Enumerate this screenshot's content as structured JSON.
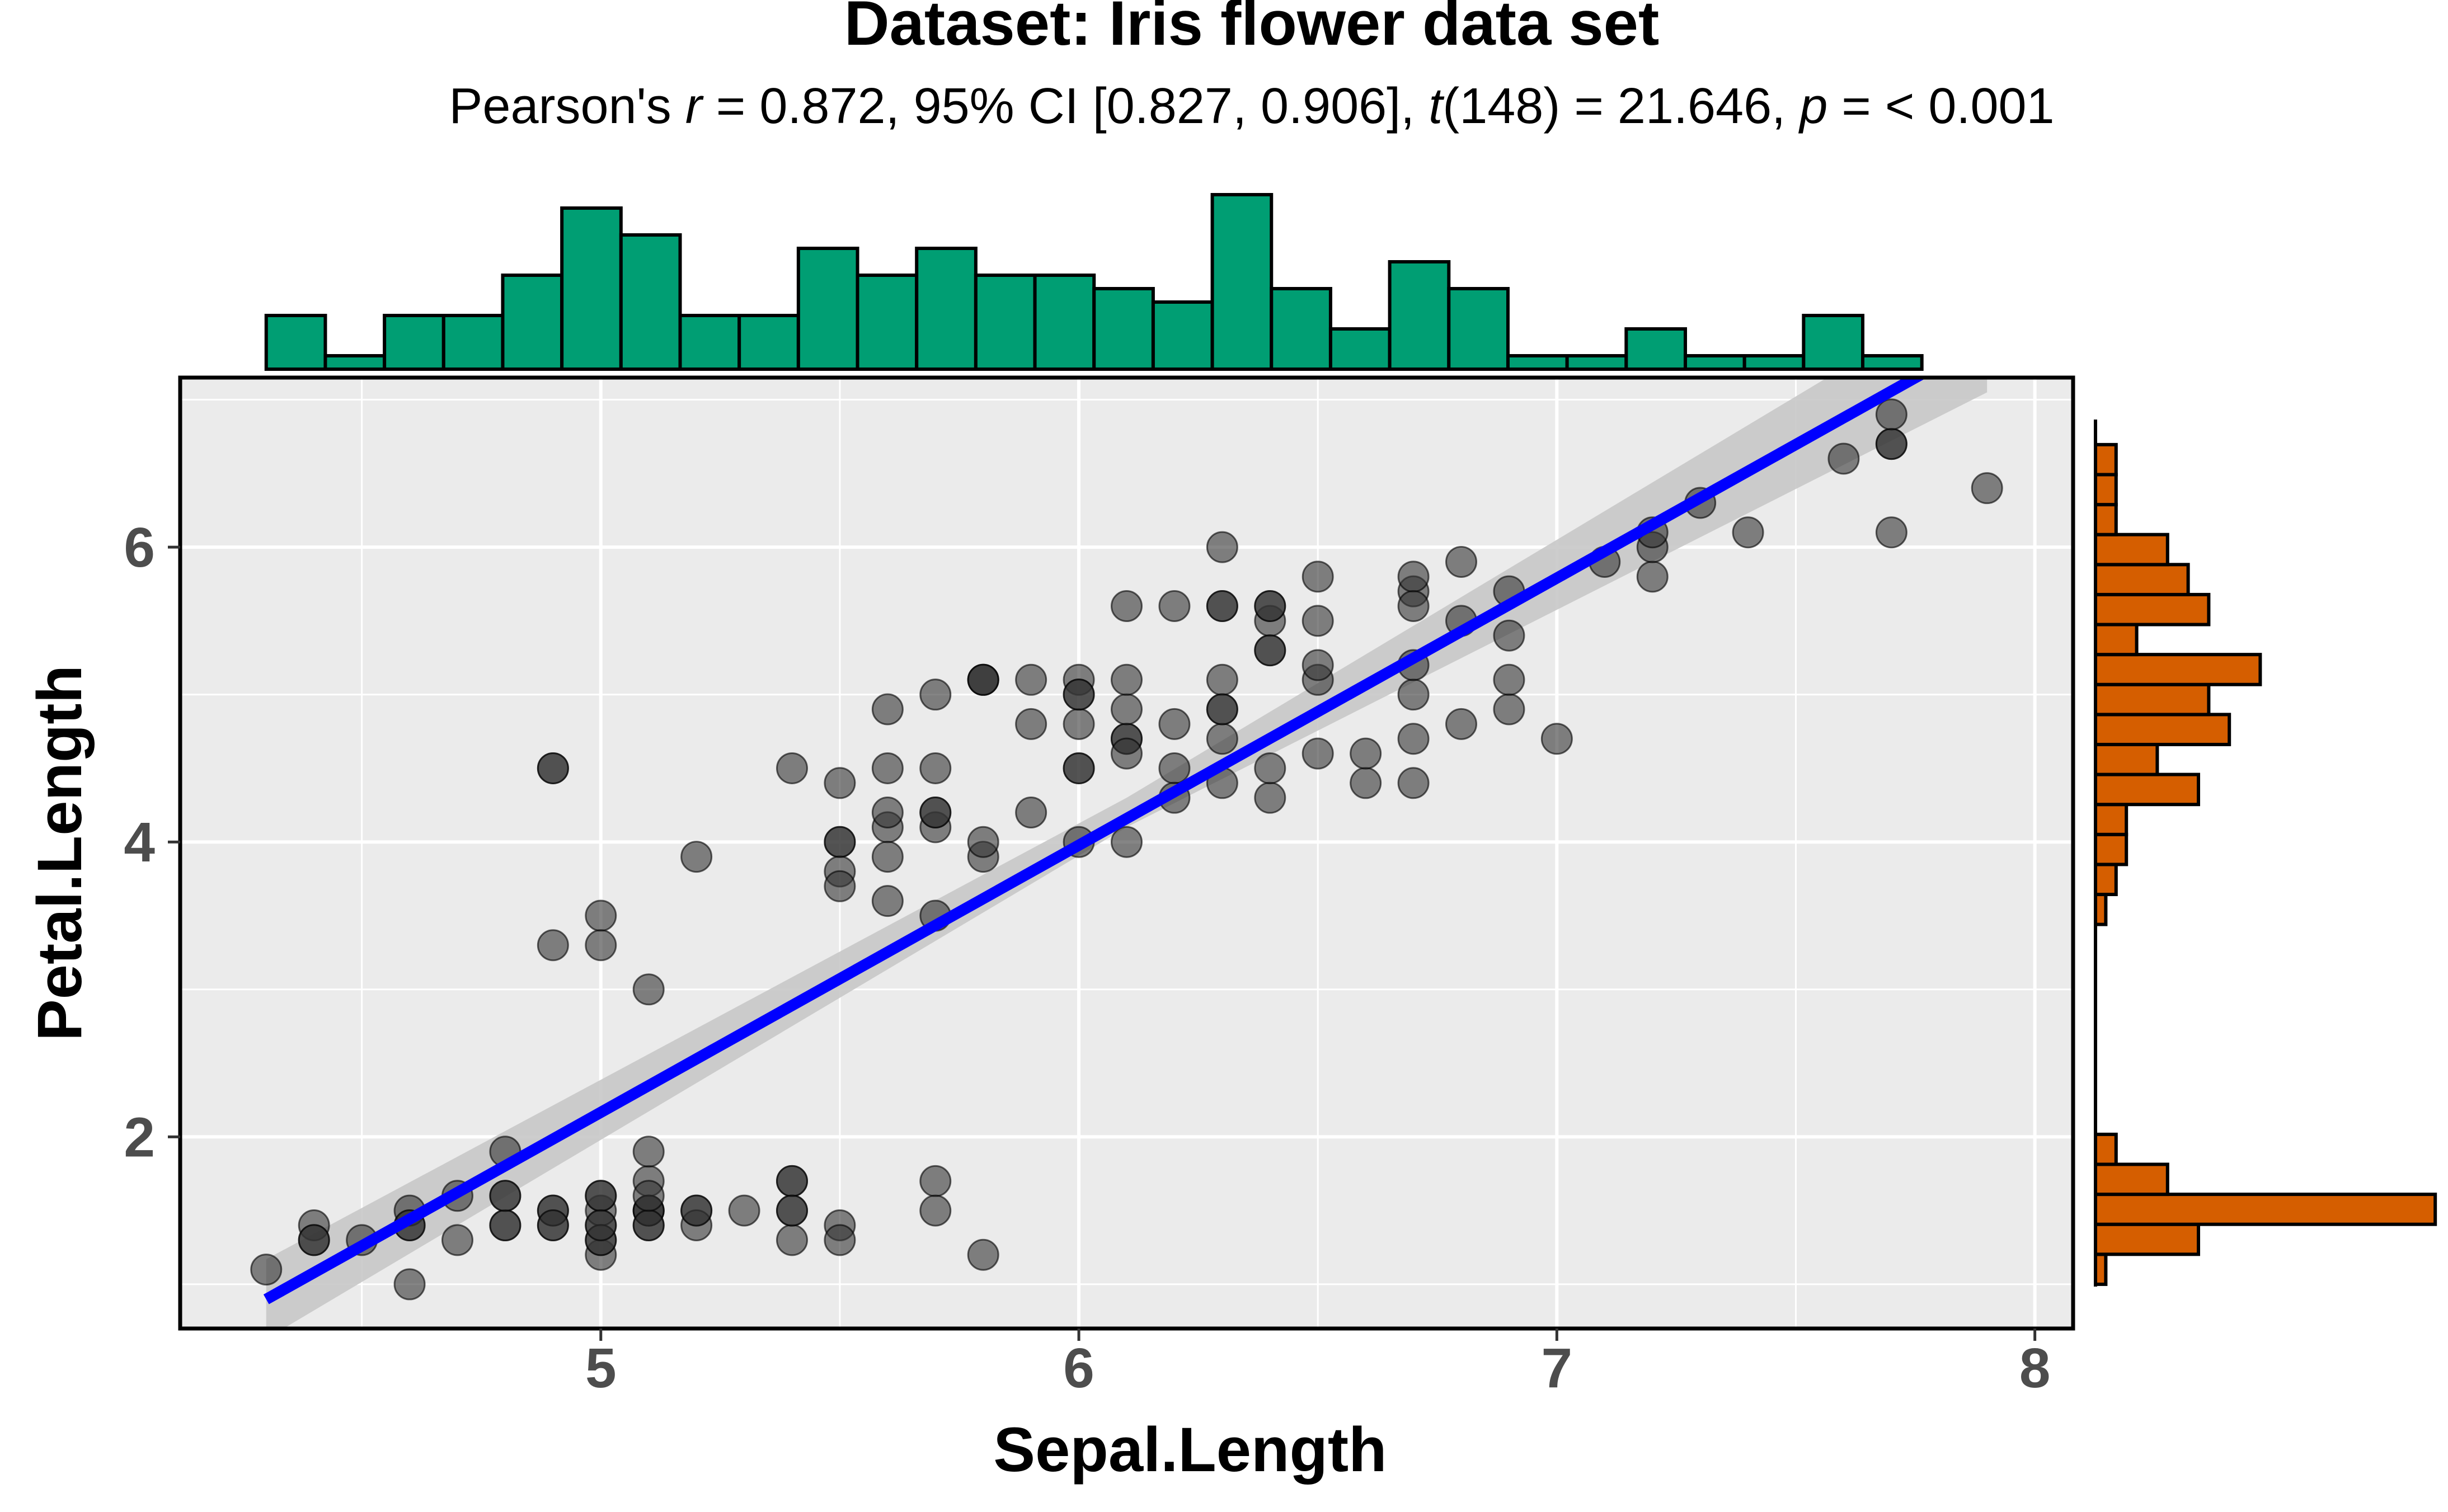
{
  "chart_data": {
    "type": "scatter",
    "title": "Dataset: Iris flower data set",
    "subtitle": {
      "parts": [
        {
          "text": "Pearson's ",
          "italic": false
        },
        {
          "text": "r",
          "italic": true
        },
        {
          "text": " = 0.872, 95% CI [0.827, 0.906], ",
          "italic": false
        },
        {
          "text": "t",
          "italic": true
        },
        {
          "text": "(148) = 21.646, ",
          "italic": false
        },
        {
          "text": "p",
          "italic": true
        },
        {
          "text": " = < 0.001",
          "italic": false
        }
      ]
    },
    "xlabel": "Sepal.Length",
    "ylabel": "Petal.Length",
    "xlim": [
      4.12,
      8.08
    ],
    "ylim": [
      0.7,
      7.15
    ],
    "x_ticks": [
      5,
      6,
      7,
      8
    ],
    "y_ticks": [
      2,
      4,
      6
    ],
    "x_minor_ticks": [
      4.5,
      5.5,
      6.5,
      7.5
    ],
    "y_minor_ticks": [
      1,
      3,
      5,
      7
    ],
    "grid": true,
    "points": {
      "x": [
        4.3,
        4.4,
        4.4,
        4.4,
        4.5,
        4.6,
        4.6,
        4.6,
        4.6,
        4.7,
        4.7,
        4.8,
        4.8,
        4.8,
        4.8,
        4.8,
        4.9,
        4.9,
        4.9,
        4.9,
        5.0,
        5.0,
        5.0,
        5.0,
        5.0,
        5.0,
        5.0,
        5.0,
        5.1,
        5.1,
        5.1,
        5.1,
        5.1,
        5.1,
        5.1,
        5.1,
        5.2,
        5.2,
        5.2,
        5.3,
        5.4,
        5.4,
        5.4,
        5.4,
        5.4,
        5.5,
        5.5,
        5.7,
        5.7,
        5.8,
        4.9,
        4.9,
        5.0,
        5.0,
        5.1,
        5.2,
        5.4,
        5.5,
        5.5,
        5.5,
        5.5,
        5.5,
        5.6,
        5.6,
        5.6,
        5.6,
        5.6,
        5.7,
        5.7,
        5.7,
        5.7,
        5.7,
        5.8,
        5.8,
        5.9,
        5.9,
        6.0,
        6.0,
        6.0,
        6.0,
        6.1,
        6.1,
        6.1,
        6.1,
        6.2,
        6.2,
        6.3,
        6.3,
        6.3,
        6.4,
        6.4,
        6.5,
        6.6,
        6.6,
        6.7,
        6.7,
        6.7,
        6.8,
        6.9,
        7.0,
        4.9,
        5.6,
        5.7,
        5.8,
        5.8,
        5.8,
        5.9,
        6.0,
        6.0,
        6.1,
        6.1,
        6.2,
        6.3,
        6.3,
        6.3,
        6.3,
        6.3,
        6.4,
        6.4,
        6.4,
        6.4,
        6.5,
        6.5,
        6.5,
        6.5,
        6.7,
        6.7,
        6.7,
        6.7,
        6.8,
        6.8,
        6.9,
        6.9,
        6.9,
        7.1,
        7.2,
        7.2,
        7.2,
        7.3,
        7.4,
        7.6,
        7.7,
        7.7,
        7.7,
        7.7,
        7.9,
        6.0,
        6.2,
        6.4,
        6.1
      ],
      "y": [
        1.1,
        1.4,
        1.3,
        1.3,
        1.3,
        1.4,
        1.0,
        1.5,
        1.4,
        1.3,
        1.6,
        1.6,
        1.4,
        1.9,
        1.4,
        1.6,
        1.4,
        1.5,
        1.5,
        1.4,
        1.4,
        1.5,
        1.6,
        1.2,
        1.3,
        1.3,
        1.6,
        1.4,
        1.4,
        1.5,
        1.5,
        1.7,
        1.5,
        1.9,
        1.4,
        1.6,
        1.5,
        1.4,
        1.5,
        1.5,
        1.7,
        1.3,
        1.5,
        1.7,
        1.5,
        1.4,
        1.3,
        1.7,
        1.5,
        1.2,
        4.5,
        3.3,
        3.5,
        3.3,
        3.0,
        3.9,
        4.5,
        4.0,
        4.4,
        4.0,
        3.8,
        3.7,
        4.5,
        4.1,
        3.6,
        3.9,
        4.2,
        4.5,
        4.1,
        3.5,
        4.2,
        4.2,
        3.9,
        4.0,
        4.8,
        4.2,
        5.1,
        4.5,
        4.5,
        4.0,
        4.7,
        4.0,
        4.7,
        4.6,
        4.5,
        4.3,
        4.9,
        4.4,
        4.7,
        4.3,
        4.5,
        4.6,
        4.4,
        4.6,
        4.4,
        5.0,
        4.7,
        4.8,
        4.9,
        4.7,
        4.5,
        4.9,
        5.0,
        5.1,
        5.1,
        5.1,
        5.1,
        4.8,
        5.0,
        4.9,
        5.6,
        4.8,
        6.0,
        5.6,
        5.6,
        5.1,
        4.9,
        5.3,
        5.5,
        5.6,
        5.3,
        5.8,
        5.1,
        5.5,
        5.2,
        5.7,
        5.8,
        5.6,
        5.2,
        5.9,
        5.5,
        5.1,
        5.7,
        5.4,
        5.9,
        5.8,
        6.0,
        6.1,
        6.3,
        6.1,
        6.6,
        6.7,
        6.7,
        6.9,
        6.1,
        6.4,
        5.0,
        5.6,
        5.6,
        5.1
      ]
    },
    "fit_line": {
      "x": [
        4.3,
        7.9
      ],
      "y": [
        0.898,
        7.421
      ]
    },
    "ci_band": {
      "x": [
        4.3,
        6.1,
        7.9
      ],
      "lower": [
        0.63,
        4.1,
        7.05
      ],
      "upper": [
        1.17,
        4.3,
        7.8
      ]
    },
    "top_histogram": {
      "bins_from": 4.3,
      "bin_width": 0.1237,
      "counts": [
        4,
        1,
        4,
        4,
        7,
        12,
        10,
        4,
        4,
        9,
        7,
        9,
        7,
        7,
        6,
        5,
        13,
        6,
        3,
        8,
        6,
        1,
        1,
        3,
        1,
        1,
        4,
        1
      ]
    },
    "right_histogram": {
      "bins_from": 1.0,
      "bin_width": 0.2034,
      "counts": [
        1,
        10,
        33,
        7,
        2,
        0,
        0,
        0,
        0,
        0,
        0,
        0,
        1,
        2,
        3,
        3,
        10,
        6,
        13,
        11,
        16,
        4,
        11,
        9,
        7,
        2,
        2,
        2
      ]
    },
    "colors": {
      "panel_background": "#EBEBEB",
      "grid": "#FFFFFF",
      "points": "#333333",
      "fit_line": "#0000FF",
      "ci_band": "#C8C8C8",
      "top_histogram": "#009E73",
      "right_histogram": "#D55E00",
      "outline": "#000000"
    }
  }
}
